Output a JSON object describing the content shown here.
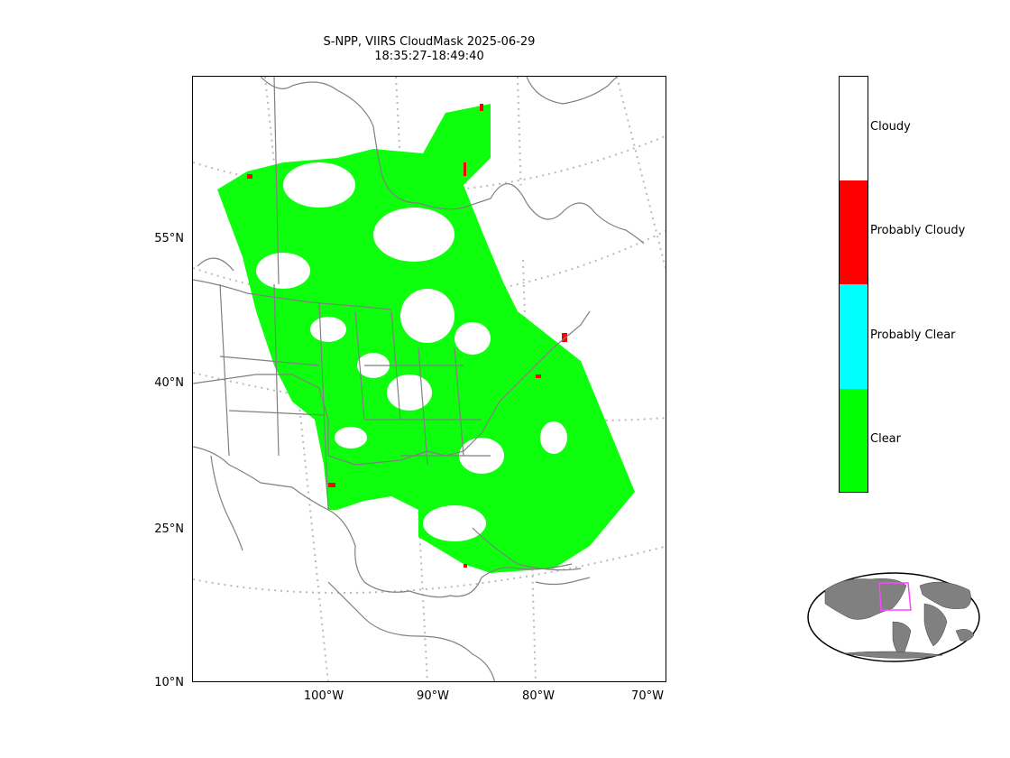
{
  "title": {
    "line1": "S-NPP, VIIRS CloudMask 2025-06-29",
    "line2": "18:35:27-18:49:40"
  },
  "map": {
    "lat_labels": [
      "55°N",
      "40°N",
      "25°N",
      "10°N"
    ],
    "lon_labels": [
      "100°W",
      "90°W",
      "80°W",
      "70°W"
    ]
  },
  "legend": {
    "items": [
      {
        "label": "Cloudy",
        "color": "#ffffff"
      },
      {
        "label": "Probably Cloudy",
        "color": "#ff0000"
      },
      {
        "label": "Probably Clear",
        "color": "#00ffff"
      },
      {
        "label": "Clear",
        "color": "#00ff00"
      }
    ]
  },
  "colors": {
    "clear": "#00ff00",
    "probably_cloudy": "#ff0000",
    "coastline": "#808080",
    "graticule": "#bbbbbb",
    "globe_land": "#808080",
    "region_box": "#ff44ff"
  }
}
